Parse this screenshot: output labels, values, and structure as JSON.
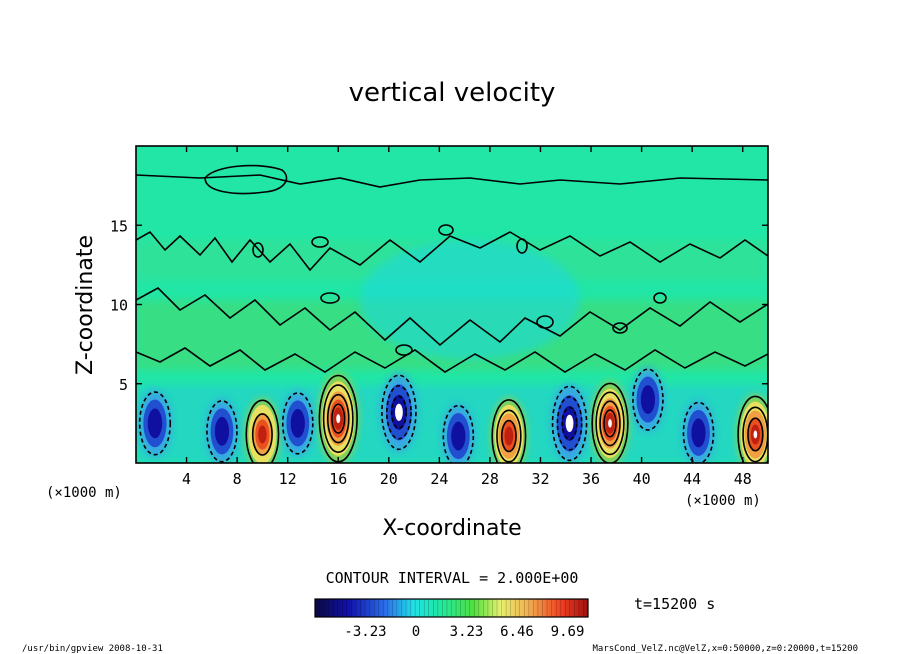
{
  "chart_data": {
    "type": "heatmap",
    "title": "vertical velocity",
    "xlabel": "X-coordinate",
    "ylabel": "Z-coordinate",
    "x_unit_left": "(×1000 m)",
    "x_unit_right": "(×1000 m)",
    "xlim": [
      0,
      50
    ],
    "ylim": [
      0,
      20
    ],
    "x_ticks": [
      4,
      8,
      12,
      16,
      20,
      24,
      28,
      32,
      36,
      40,
      44,
      48
    ],
    "y_ticks": [
      5,
      10,
      15
    ],
    "contour_interval_label": "CONTOUR INTERVAL = 2.000E+00",
    "time_label": "t=15200 s",
    "colorbar": {
      "range": [
        -6.46,
        11.0
      ],
      "tick_values": [
        -3.23,
        0,
        3.23,
        6.46,
        9.69
      ],
      "tick_labels": [
        "-3.23",
        "0",
        "3.23",
        "6.46",
        "9.69"
      ]
    },
    "cells": [
      {
        "x": 16,
        "z": 2.8,
        "w": 9.7,
        "label": "updraft"
      },
      {
        "x": 10,
        "z": 1.8,
        "w": 5.0,
        "label": "updraft"
      },
      {
        "x": 29.5,
        "z": 1.7,
        "w": 6.0,
        "label": "updraft"
      },
      {
        "x": 37.5,
        "z": 2.5,
        "w": 8.0,
        "label": "updraft"
      },
      {
        "x": 49,
        "z": 1.8,
        "w": 7.0,
        "label": "updraft"
      },
      {
        "x": 1.5,
        "z": 2.5,
        "w": -3.5,
        "label": "downdraft"
      },
      {
        "x": 6.8,
        "z": 2.0,
        "w": -3.0,
        "label": "downdraft"
      },
      {
        "x": 12.8,
        "z": 2.5,
        "w": -3.0,
        "label": "downdraft"
      },
      {
        "x": 20.8,
        "z": 3.2,
        "w": -6.5,
        "label": "downdraft"
      },
      {
        "x": 25.5,
        "z": 1.7,
        "w": -3.0,
        "label": "downdraft"
      },
      {
        "x": 34.3,
        "z": 2.5,
        "w": -6.5,
        "label": "downdraft"
      },
      {
        "x": 40.5,
        "z": 4.0,
        "w": -3.0,
        "label": "downdraft"
      },
      {
        "x": 44.5,
        "z": 1.9,
        "w": -3.0,
        "label": "downdraft"
      }
    ]
  },
  "footer": {
    "left": "/usr/bin/gpview   2008-10-31",
    "right": "MarsCond_VelZ.nc@VelZ,x=0:50000,z=0:20000,t=15200"
  }
}
